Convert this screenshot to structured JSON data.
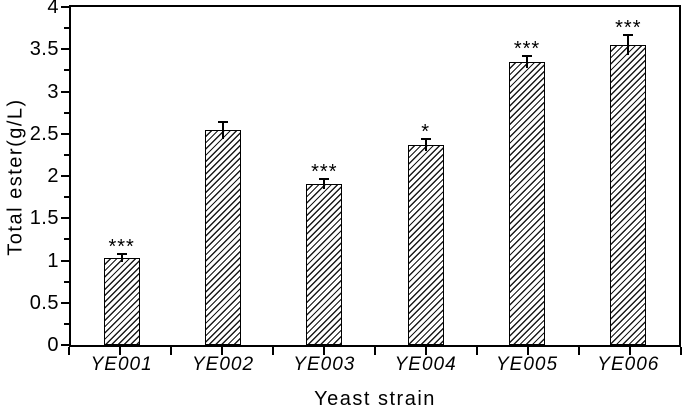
{
  "chart_data": {
    "type": "bar",
    "title": "",
    "xlabel": "Yeast strain",
    "ylabel": "Total ester(g/L)",
    "categories": [
      "YE001",
      "YE002",
      "YE003",
      "YE004",
      "YE005",
      "YE006"
    ],
    "values": [
      1.03,
      2.54,
      1.91,
      2.37,
      3.35,
      3.55
    ],
    "errors": [
      0.05,
      0.1,
      0.06,
      0.07,
      0.07,
      0.12
    ],
    "significance": [
      "***",
      "",
      "***",
      "*",
      "***",
      "***"
    ],
    "ylim": [
      0,
      4
    ],
    "ytick_step": 0.5,
    "yminor_step": 0.25,
    "ytick_labels": [
      "0",
      "0.5",
      "1",
      "1.5",
      "2",
      "2.5",
      "3",
      "3.5",
      "4"
    ],
    "grid": false,
    "legend": "none",
    "frame": true,
    "bar_style": "diagonal-hatch",
    "colors": {
      "line": "#000000",
      "bar_hatch": "#1a1a1a",
      "background": "#ffffff"
    }
  }
}
